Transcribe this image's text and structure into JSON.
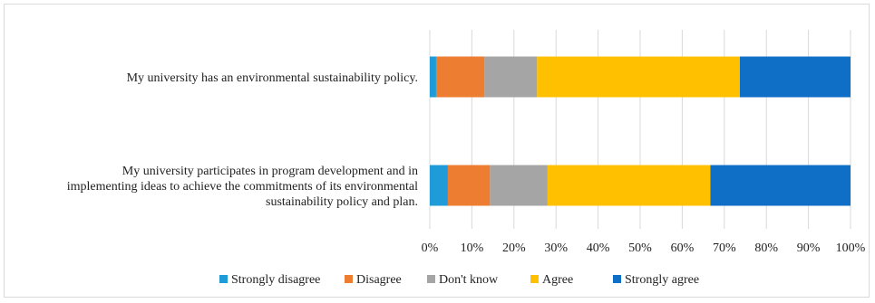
{
  "chart_data": {
    "type": "bar",
    "orientation": "horizontal",
    "stacked": true,
    "percent_stacked": true,
    "categories": [
      [
        "My university has an environmental sustainability policy."
      ],
      [
        "My university participates in program development and in",
        "implementing ideas to achieve the commitments of its environmental",
        "sustainability policy and plan."
      ]
    ],
    "series": [
      {
        "name": "Strongly disagree",
        "color": "#1f9bd7",
        "values": [
          1.5,
          4.3
        ]
      },
      {
        "name": "Disagree",
        "color": "#ed7d31",
        "values": [
          11.5,
          10.0
        ]
      },
      {
        "name": "Don't know",
        "color": "#a5a5a5",
        "values": [
          12.5,
          13.7
        ]
      },
      {
        "name": "Agree",
        "color": "#ffc000",
        "values": [
          48.2,
          38.7
        ]
      },
      {
        "name": "Strongly agree",
        "color": "#0f6fc6",
        "values": [
          26.3,
          33.3
        ]
      }
    ],
    "xlim": [
      0,
      100
    ],
    "xticks": [
      "0%",
      "10%",
      "20%",
      "30%",
      "40%",
      "50%",
      "60%",
      "70%",
      "80%",
      "90%",
      "100%"
    ],
    "grid": true,
    "legend_position": "bottom"
  }
}
